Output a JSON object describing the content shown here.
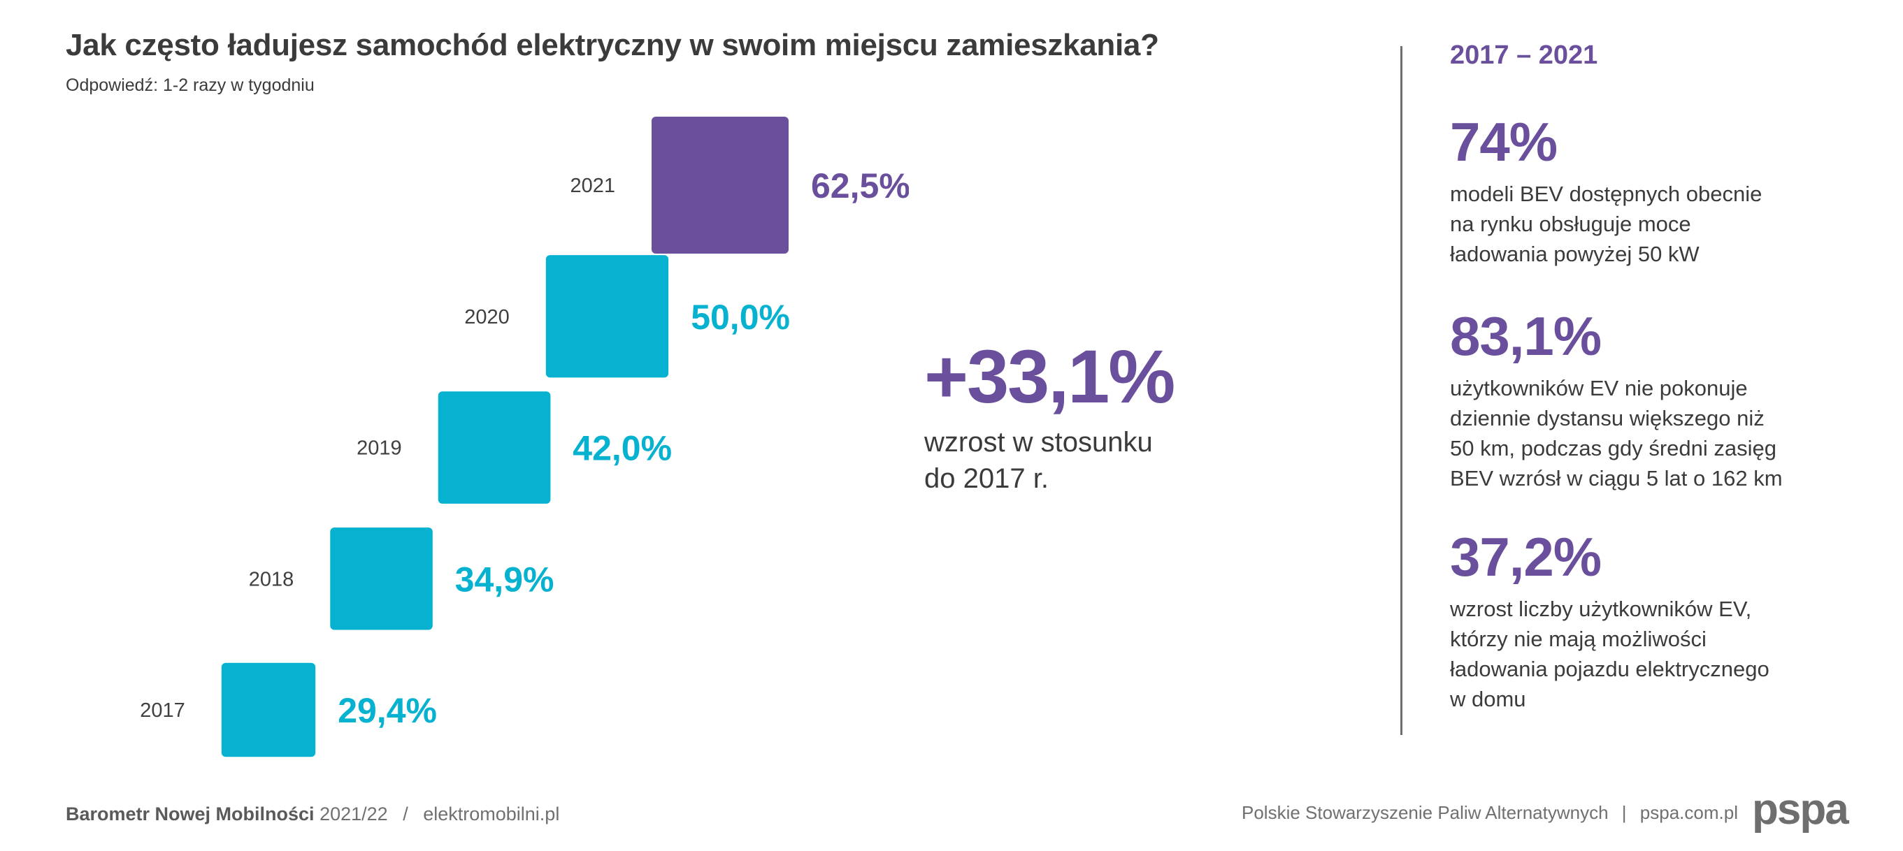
{
  "colors": {
    "purple": "#6a4f9c",
    "cyan": "#06b2d0",
    "text": "#3b3b3b",
    "footer": "#707070"
  },
  "header": {
    "title": "Jak często ładujesz samochód elektryczny w swoim miejscu zamieszkania?",
    "subtitle": "Odpowiedź: 1-2 razy w tygodniu"
  },
  "chart_data": {
    "type": "bar",
    "encoding": "square-area",
    "categories": [
      "2021",
      "2020",
      "2019",
      "2018",
      "2017"
    ],
    "values": [
      62.5,
      50.0,
      42.0,
      34.9,
      29.4
    ],
    "value_labels": [
      "62,5%",
      "50,0%",
      "42,0%",
      "34,9%",
      "29,4%"
    ],
    "highlight_category": "2021",
    "title": "Jak często ładujesz samochód elektryczny w swoim miejscu zamieszkania?",
    "subtitle": "Odpowiedź: 1-2 razy w tygodniu",
    "unit": "%"
  },
  "growth": {
    "value": "+33,1%",
    "text": "wzrost w stosunku\ndo 2017 r."
  },
  "side": {
    "heading": "2017 – 2021",
    "stats": [
      {
        "value": "74%",
        "text": "modeli BEV dostępnych obecnie\nna rynku obsługuje moce\nładowania powyżej 50 kW"
      },
      {
        "value": "83,1%",
        "text": "użytkowników EV nie pokonuje\ndziennie dystansu większego niż\n50 km, podczas gdy średni zasięg\nBEV wzrósł w ciągu 5 lat o 162 km"
      },
      {
        "value": "37,2%",
        "text": "wzrost liczby użytkowników EV,\nktórzy nie mają możliwości\nładowania pojazdu elektrycznego\nw domu"
      }
    ]
  },
  "footer": {
    "source_bold": "Barometr Nowej Mobilności",
    "source_year": "2021/22",
    "separator": "/",
    "site": "elektromobilni.pl",
    "org": "Polskie Stowarzyszenie Paliw Alternatywnych",
    "org_separator": "|",
    "org_site": "pspa.com.pl",
    "logo_text": "pspa"
  }
}
